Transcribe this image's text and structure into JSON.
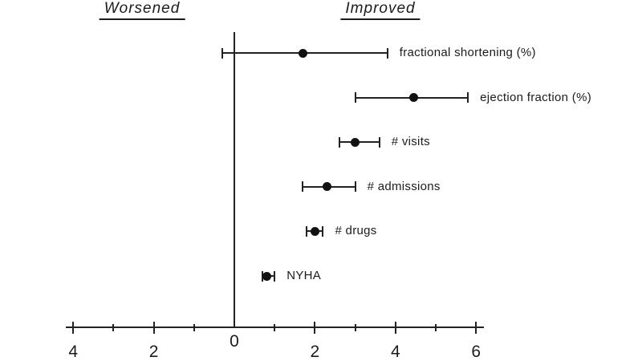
{
  "chart_data": {
    "type": "scatter",
    "subtype": "forest-plot-dot-with-ci",
    "title": "",
    "headers": {
      "left": "Worsened",
      "right": "Improved"
    },
    "axis": {
      "orientation": "horizontal",
      "min": -4,
      "max": 6,
      "zero_line": true,
      "grid": false,
      "note": "negative side labeled with absolute values",
      "ticks": [
        {
          "value": -4,
          "label": "4"
        },
        {
          "value": -3,
          "label": ""
        },
        {
          "value": -2,
          "label": "2"
        },
        {
          "value": -1,
          "label": ""
        },
        {
          "value": 0,
          "label": "0"
        },
        {
          "value": 1,
          "label": ""
        },
        {
          "value": 2,
          "label": "2"
        },
        {
          "value": 3,
          "label": ""
        },
        {
          "value": 4,
          "label": "4"
        },
        {
          "value": 5,
          "label": ""
        },
        {
          "value": 6,
          "label": "6"
        }
      ]
    },
    "series": [
      {
        "label": "fractional shortening (%)",
        "point": 1.7,
        "ci_low": -0.3,
        "ci_high": 3.8
      },
      {
        "label": "ejection fraction (%)",
        "point": 4.45,
        "ci_low": 3.0,
        "ci_high": 5.8
      },
      {
        "label": "# visits",
        "point": 3.0,
        "ci_low": 2.6,
        "ci_high": 3.6
      },
      {
        "label": "# admissions",
        "point": 2.3,
        "ci_low": 1.7,
        "ci_high": 3.0
      },
      {
        "label": "# drugs",
        "point": 2.0,
        "ci_low": 1.8,
        "ci_high": 2.2
      },
      {
        "label": "NYHA",
        "point": 0.8,
        "ci_low": 0.7,
        "ci_high": 1.0
      }
    ],
    "colors": {
      "ink": "#1c1c1c",
      "background": "#ffffff"
    }
  }
}
